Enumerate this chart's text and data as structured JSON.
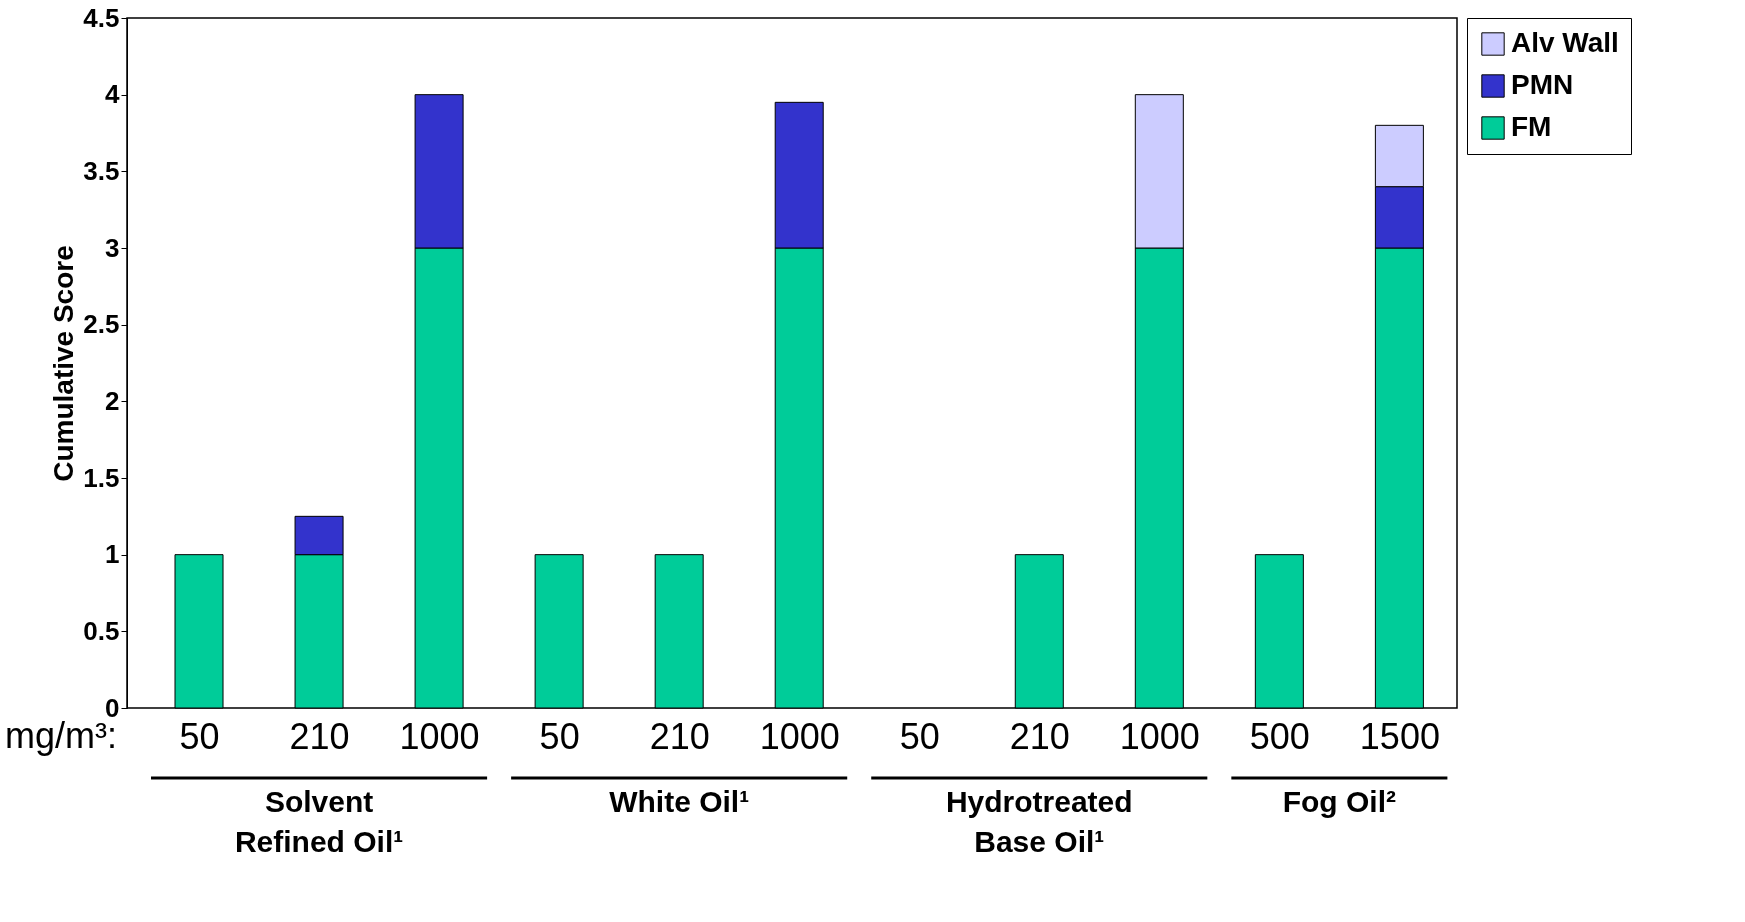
{
  "chart_data": {
    "type": "bar",
    "stacked": true,
    "ylabel": "Cumulative Score",
    "categories": [
      "50",
      "210",
      "1000",
      "50",
      "210",
      "1000",
      "50",
      "210",
      "1000",
      "500",
      "1500"
    ],
    "series": [
      {
        "name": "FM",
        "color": "#00cc99",
        "values": [
          1,
          1,
          3,
          1,
          1,
          3,
          null,
          1,
          3,
          1,
          3
        ]
      },
      {
        "name": "PMN",
        "color": "#3333cc",
        "values": [
          null,
          0.25,
          1,
          null,
          null,
          0.95,
          null,
          null,
          null,
          null,
          0.4
        ]
      },
      {
        "name": "Alv Wall",
        "color": "#ccccff",
        "values": [
          null,
          null,
          null,
          null,
          null,
          null,
          null,
          null,
          1,
          null,
          0.4
        ]
      }
    ],
    "ylim": [
      0,
      4.5
    ],
    "yticks": [
      0,
      0.5,
      1,
      1.5,
      2,
      2.5,
      3,
      3.5,
      4,
      4.5
    ],
    "grid": false,
    "legend": "right",
    "annotations": [
      "mg/m³:",
      "Solvent\nRefined Oil¹",
      "White Oil¹",
      "Hydrotreated\nBase Oil¹",
      "Fog Oil²"
    ]
  }
}
